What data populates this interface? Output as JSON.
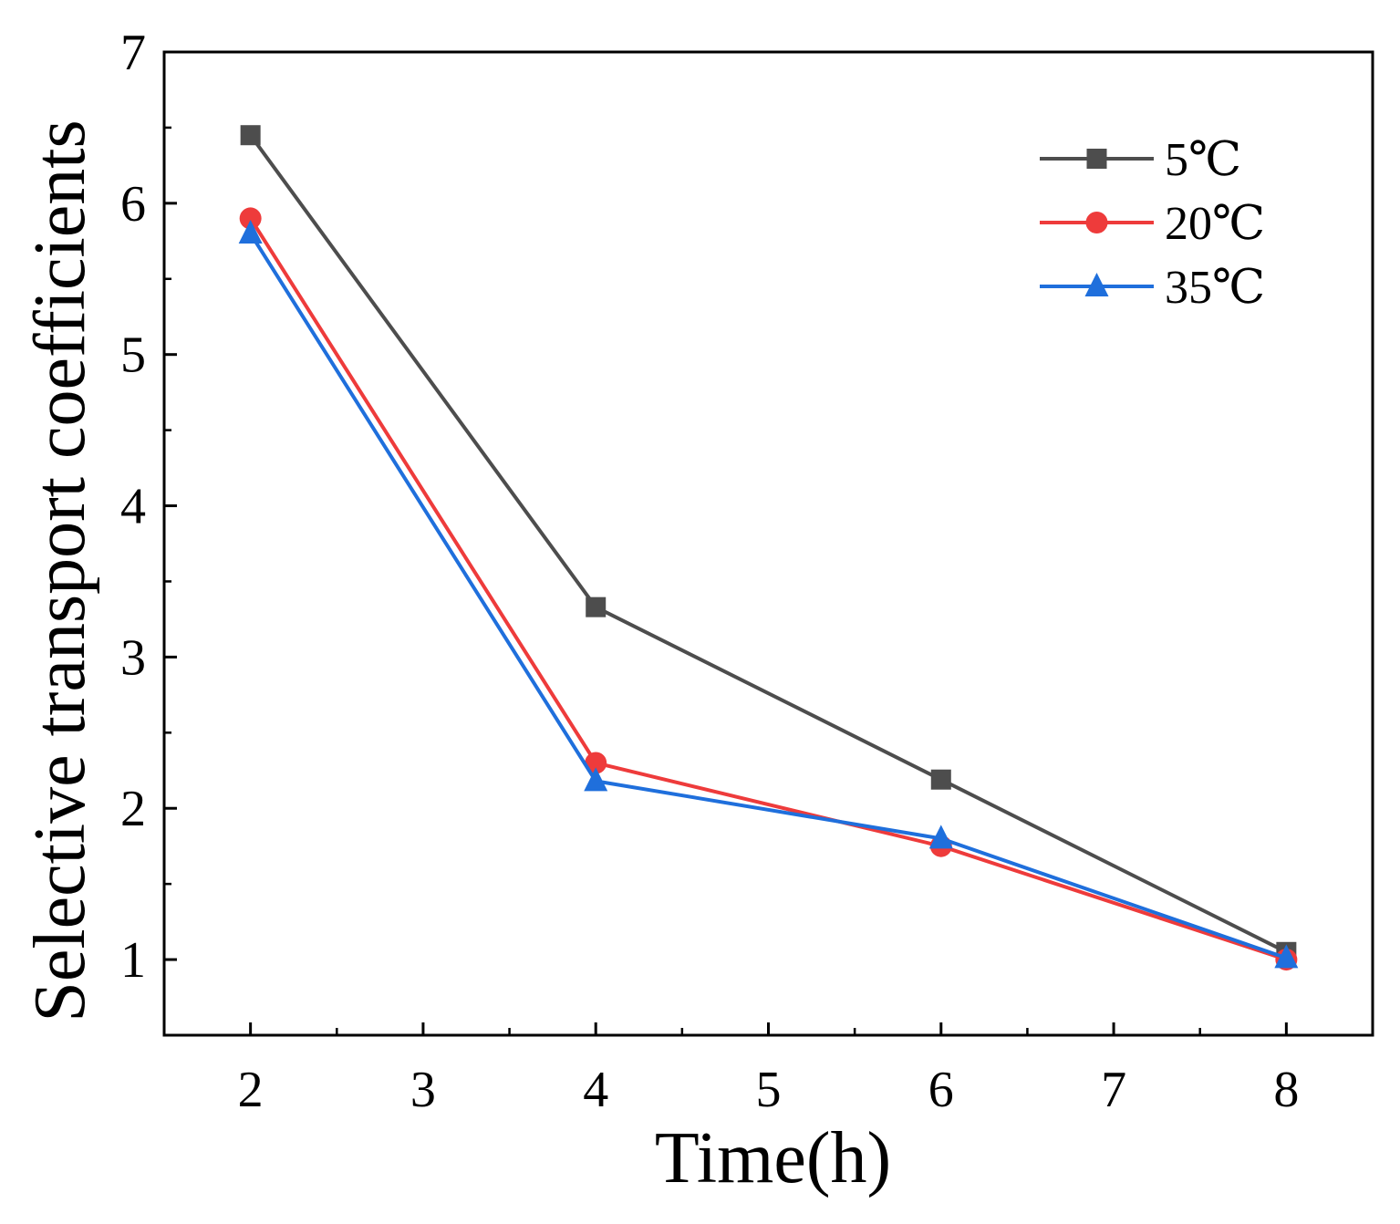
{
  "chart_data": {
    "type": "line",
    "title": "",
    "xlabel": "Time(h)",
    "ylabel": "Selective transport coefficients",
    "xlim": [
      1.5,
      8.5
    ],
    "ylim": [
      0.5,
      7
    ],
    "xticks": [
      2,
      3,
      4,
      5,
      6,
      7,
      8
    ],
    "xtick_labels": [
      "2",
      "3",
      "4",
      "5",
      "6",
      "7",
      "8"
    ],
    "yticks": [
      1,
      2,
      3,
      4,
      5,
      6,
      7
    ],
    "ytick_labels": [
      "1",
      "2",
      "3",
      "4",
      "5",
      "6",
      "7"
    ],
    "grid": false,
    "legend_position": "top-right",
    "x": [
      2,
      4,
      6,
      8
    ],
    "series": [
      {
        "name": "5℃",
        "values": [
          6.45,
          3.33,
          2.19,
          1.05
        ],
        "color": "#4d4d4d",
        "marker": "square"
      },
      {
        "name": "20℃",
        "values": [
          5.9,
          2.3,
          1.75,
          1.0
        ],
        "color": "#ee3b3b",
        "marker": "circle"
      },
      {
        "name": "35℃",
        "values": [
          5.8,
          2.18,
          1.8,
          1.01
        ],
        "color": "#1f6fdc",
        "marker": "triangle"
      }
    ]
  }
}
